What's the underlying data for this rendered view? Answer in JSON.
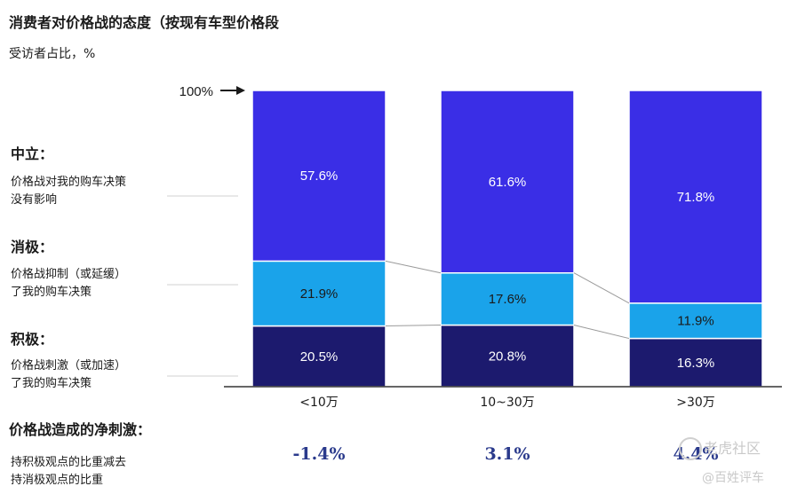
{
  "title": "消费者对价格战的态度（按现有车型价格段",
  "subtitle": "受访者占比，%",
  "legend_labels": {
    "neutral": {
      "head": "中立：",
      "lines": [
        "价格战对我的购车决策",
        "没有影响"
      ]
    },
    "negative": {
      "head": "消极：",
      "lines": [
        "价格战抑制（或延缓）",
        "了我的购车决策"
      ]
    },
    "positive": {
      "head": "积极：",
      "lines": [
        "价格战刺激（或加速）",
        "了我的购车决策"
      ]
    }
  },
  "net_section": {
    "title": "价格战造成的净刺激：",
    "desc_lines": [
      "持积极观点的比重减去",
      "持消极观点的比重"
    ]
  },
  "watermark": {
    "line1": "老虎社区",
    "line2": "@百姓评车"
  },
  "colors": {
    "neutral": "#3a2ee6",
    "negative": "#1aa3ea",
    "positive": "#1c1a6e",
    "net_value": "#2a3a8c"
  },
  "chart_data": {
    "type": "bar",
    "stacked": true,
    "normalized": true,
    "top_marker": "100%",
    "categories": [
      "<10万",
      "10~30万",
      ">30万"
    ],
    "series": [
      {
        "key": "positive",
        "values": [
          20.5,
          20.8,
          16.3
        ],
        "labels": [
          "20.5%",
          "20.8%",
          "16.3%"
        ]
      },
      {
        "key": "negative",
        "values": [
          21.9,
          17.6,
          11.9
        ],
        "labels": [
          "21.9%",
          "17.6%",
          "11.9%"
        ]
      },
      {
        "key": "neutral",
        "values": [
          57.6,
          61.6,
          71.8
        ],
        "labels": [
          "57.6%",
          "61.6%",
          "71.8%"
        ]
      }
    ],
    "net_values": [
      "-1.4%",
      "3.1%",
      "4.4%"
    ],
    "ylim": [
      0,
      100
    ]
  }
}
